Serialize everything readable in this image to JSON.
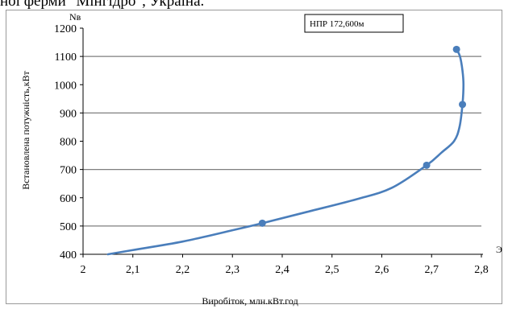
{
  "caption_fragment": "ної ферми \"Мінгідро\", Україна.",
  "chart_data": {
    "type": "line",
    "legend": "НПР 172,600м",
    "legend_position": "top-right",
    "xlabel": "Виробіток, млн.кВт.год",
    "ylabel": "Встановлена потужність,кВт",
    "x_axis_symbol": "Э",
    "y_axis_symbol": "Nв",
    "xlim": [
      2,
      2.8
    ],
    "ylim": [
      400,
      1200
    ],
    "x_ticks": [
      "2",
      "2,1",
      "2,2",
      "2,3",
      "2,4",
      "2,5",
      "2,6",
      "2,7",
      "2,8"
    ],
    "y_ticks": [
      "400",
      "500",
      "600",
      "700",
      "800",
      "900",
      "1000",
      "1100",
      "1200"
    ],
    "grid": "horizontal",
    "series": [
      {
        "name": "НПР 172,600м",
        "color": "#4a7ebb",
        "curve": [
          [
            2.05,
            400
          ],
          [
            2.1,
            415
          ],
          [
            2.2,
            445
          ],
          [
            2.3,
            485
          ],
          [
            2.36,
            510
          ],
          [
            2.45,
            550
          ],
          [
            2.55,
            595
          ],
          [
            2.62,
            635
          ],
          [
            2.69,
            715
          ],
          [
            2.72,
            760
          ],
          [
            2.745,
            800
          ],
          [
            2.756,
            850
          ],
          [
            2.762,
            930
          ],
          [
            2.764,
            1000
          ],
          [
            2.762,
            1050
          ],
          [
            2.757,
            1100
          ],
          [
            2.75,
            1125
          ]
        ],
        "markers": [
          [
            2.36,
            510
          ],
          [
            2.69,
            715
          ],
          [
            2.762,
            930
          ],
          [
            2.75,
            1125
          ]
        ]
      }
    ]
  }
}
